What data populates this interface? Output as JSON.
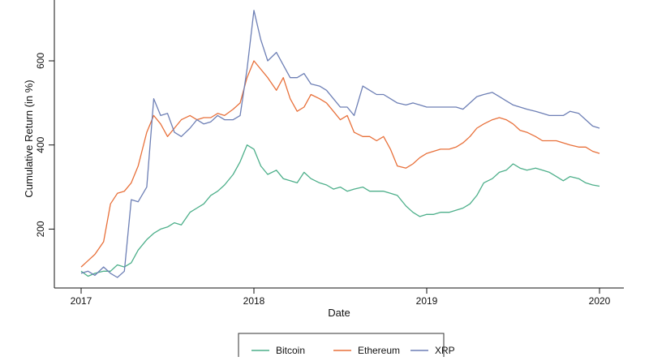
{
  "chart_data": {
    "type": "line",
    "title": "",
    "xlabel": "Date",
    "ylabel": "Cumulative Return (in %)",
    "x_ticks": [
      "2017",
      "2018",
      "2019",
      "2020"
    ],
    "y_ticks": [
      200,
      400,
      600
    ],
    "xlim": [
      2017.0,
      2020.15
    ],
    "ylim": [
      60,
      735
    ],
    "grid": false,
    "legend_position": "bottom",
    "series": [
      {
        "name": "Bitcoin",
        "color": "#4daf8a",
        "x": [
          2017.0,
          2017.04,
          2017.08,
          2017.13,
          2017.17,
          2017.21,
          2017.25,
          2017.29,
          2017.33,
          2017.38,
          2017.42,
          2017.46,
          2017.5,
          2017.54,
          2017.58,
          2017.63,
          2017.67,
          2017.71,
          2017.75,
          2017.79,
          2017.83,
          2017.88,
          2017.92,
          2017.96,
          2018.0,
          2018.04,
          2018.08,
          2018.13,
          2018.17,
          2018.21,
          2018.25,
          2018.29,
          2018.33,
          2018.38,
          2018.42,
          2018.46,
          2018.5,
          2018.54,
          2018.58,
          2018.63,
          2018.67,
          2018.71,
          2018.75,
          2018.79,
          2018.83,
          2018.88,
          2018.92,
          2018.96,
          2019.0,
          2019.04,
          2019.08,
          2019.13,
          2019.17,
          2019.21,
          2019.25,
          2019.29,
          2019.33,
          2019.38,
          2019.42,
          2019.46,
          2019.5,
          2019.54,
          2019.58,
          2019.63,
          2019.67,
          2019.71,
          2019.75,
          2019.79,
          2019.83,
          2019.88,
          2019.92,
          2019.96,
          2020.0
        ],
        "values": [
          100,
          88,
          95,
          100,
          100,
          115,
          110,
          120,
          150,
          175,
          190,
          200,
          205,
          215,
          210,
          240,
          250,
          260,
          280,
          290,
          305,
          330,
          360,
          400,
          390,
          350,
          330,
          340,
          320,
          315,
          310,
          335,
          320,
          310,
          305,
          295,
          300,
          290,
          295,
          300,
          290,
          290,
          290,
          285,
          280,
          255,
          240,
          230,
          235,
          235,
          240,
          240,
          245,
          250,
          260,
          280,
          310,
          320,
          335,
          340,
          355,
          345,
          340,
          345,
          340,
          335,
          325,
          315,
          325,
          320,
          310,
          305,
          302
        ]
      },
      {
        "name": "Ethereum",
        "color": "#e8703a",
        "x": [
          2017.0,
          2017.04,
          2017.08,
          2017.13,
          2017.17,
          2017.21,
          2017.25,
          2017.29,
          2017.33,
          2017.38,
          2017.42,
          2017.46,
          2017.5,
          2017.54,
          2017.58,
          2017.63,
          2017.67,
          2017.71,
          2017.75,
          2017.79,
          2017.83,
          2017.88,
          2017.92,
          2017.96,
          2018.0,
          2018.04,
          2018.08,
          2018.13,
          2018.17,
          2018.21,
          2018.25,
          2018.29,
          2018.33,
          2018.38,
          2018.42,
          2018.46,
          2018.5,
          2018.54,
          2018.58,
          2018.63,
          2018.67,
          2018.71,
          2018.75,
          2018.79,
          2018.83,
          2018.88,
          2018.92,
          2018.96,
          2019.0,
          2019.04,
          2019.08,
          2019.13,
          2019.17,
          2019.21,
          2019.25,
          2019.29,
          2019.33,
          2019.38,
          2019.42,
          2019.46,
          2019.5,
          2019.54,
          2019.58,
          2019.63,
          2019.67,
          2019.71,
          2019.75,
          2019.79,
          2019.83,
          2019.88,
          2019.92,
          2019.96,
          2020.0
        ],
        "values": [
          110,
          125,
          140,
          170,
          260,
          285,
          290,
          310,
          350,
          430,
          470,
          450,
          420,
          440,
          460,
          470,
          460,
          465,
          465,
          475,
          470,
          485,
          500,
          560,
          600,
          580,
          560,
          530,
          560,
          510,
          480,
          490,
          520,
          510,
          500,
          480,
          460,
          470,
          430,
          420,
          420,
          410,
          420,
          390,
          350,
          345,
          355,
          370,
          380,
          385,
          390,
          390,
          395,
          405,
          420,
          440,
          450,
          460,
          465,
          460,
          450,
          435,
          430,
          420,
          410,
          410,
          410,
          405,
          400,
          395,
          395,
          385,
          380
        ]
      },
      {
        "name": "XRP",
        "color": "#6d7fb5",
        "x": [
          2017.0,
          2017.04,
          2017.08,
          2017.13,
          2017.17,
          2017.21,
          2017.25,
          2017.29,
          2017.33,
          2017.38,
          2017.42,
          2017.46,
          2017.5,
          2017.54,
          2017.58,
          2017.63,
          2017.67,
          2017.71,
          2017.75,
          2017.79,
          2017.83,
          2017.88,
          2017.92,
          2017.96,
          2018.0,
          2018.04,
          2018.08,
          2018.13,
          2018.17,
          2018.21,
          2018.25,
          2018.29,
          2018.33,
          2018.38,
          2018.42,
          2018.46,
          2018.5,
          2018.54,
          2018.58,
          2018.63,
          2018.67,
          2018.71,
          2018.75,
          2018.79,
          2018.83,
          2018.88,
          2018.92,
          2018.96,
          2019.0,
          2019.04,
          2019.08,
          2019.13,
          2019.17,
          2019.21,
          2019.25,
          2019.29,
          2019.33,
          2019.38,
          2019.42,
          2019.46,
          2019.5,
          2019.54,
          2019.58,
          2019.63,
          2019.67,
          2019.71,
          2019.75,
          2019.79,
          2019.83,
          2019.88,
          2019.92,
          2019.96,
          2020.0
        ],
        "values": [
          95,
          100,
          90,
          110,
          95,
          85,
          100,
          270,
          265,
          300,
          510,
          470,
          475,
          430,
          420,
          440,
          460,
          450,
          455,
          470,
          460,
          460,
          470,
          580,
          720,
          650,
          600,
          620,
          590,
          560,
          560,
          570,
          545,
          540,
          530,
          510,
          490,
          490,
          470,
          540,
          530,
          520,
          520,
          510,
          500,
          495,
          500,
          495,
          490,
          490,
          490,
          490,
          490,
          485,
          500,
          515,
          520,
          525,
          515,
          505,
          495,
          490,
          485,
          480,
          475,
          470,
          470,
          470,
          480,
          475,
          460,
          445,
          440
        ]
      }
    ]
  }
}
